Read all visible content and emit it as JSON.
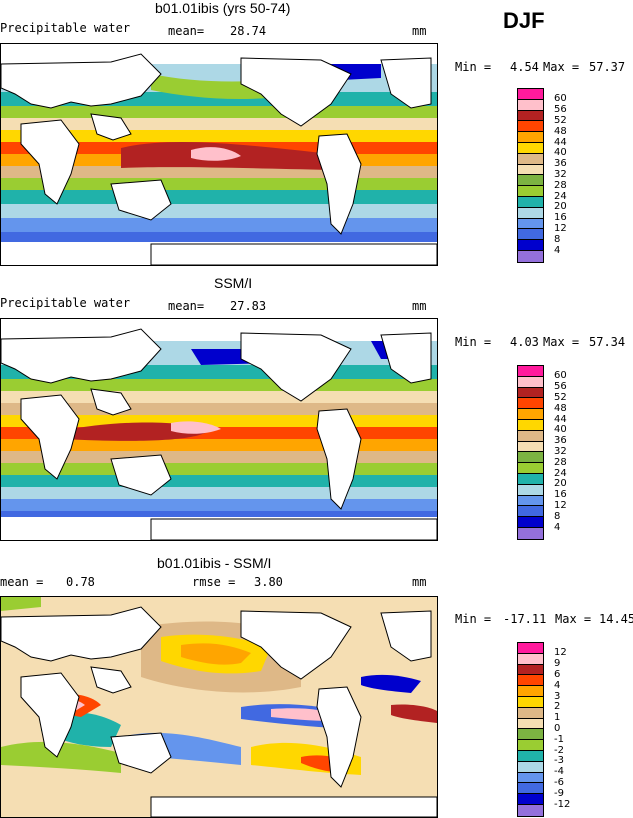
{
  "season": "DJF",
  "panels": [
    {
      "title": "b01.01ibis (yrs 50-74)",
      "field": "Precipitable water",
      "mean_label": "mean=",
      "mean_value": "28.74",
      "units": "mm",
      "min_label": "Min =",
      "min_value": "4.54",
      "max_label": "Max =",
      "max_value": "57.37",
      "levels": [
        "60",
        "56",
        "52",
        "48",
        "44",
        "40",
        "36",
        "32",
        "28",
        "24",
        "20",
        "16",
        "12",
        "8",
        "4"
      ],
      "colors": [
        "#ff1a9c",
        "#ffc0cb",
        "#b22222",
        "#ff4500",
        "#ffa500",
        "#ffd700",
        "#deb887",
        "#f5deb3",
        "#7cb342",
        "#9acd32",
        "#20b2aa",
        "#add8e6",
        "#6495ed",
        "#4169e1",
        "#0000cd",
        "#9370db"
      ]
    },
    {
      "title": "SSM/I",
      "field": "Precipitable water",
      "mean_label": "mean=",
      "mean_value": "27.83",
      "units": "mm",
      "min_label": "Min =",
      "min_value": "4.03",
      "max_label": "Max =",
      "max_value": "57.34",
      "levels": [
        "60",
        "56",
        "52",
        "48",
        "44",
        "40",
        "36",
        "32",
        "28",
        "24",
        "20",
        "16",
        "12",
        "8",
        "4"
      ],
      "colors": [
        "#ff1a9c",
        "#ffc0cb",
        "#b22222",
        "#ff4500",
        "#ffa500",
        "#ffd700",
        "#deb887",
        "#f5deb3",
        "#7cb342",
        "#9acd32",
        "#20b2aa",
        "#add8e6",
        "#6495ed",
        "#4169e1",
        "#0000cd",
        "#9370db"
      ]
    },
    {
      "title": "b01.01ibis - SSM/I",
      "mean_label": "mean =",
      "mean_value": "0.78",
      "rmse_label": "rmse =",
      "rmse_value": "3.80",
      "units": "mm",
      "min_label": "Min =",
      "min_value": "-17.11",
      "max_label": "Max =",
      "max_value": "14.45",
      "levels": [
        "12",
        "9",
        "6",
        "4",
        "3",
        "2",
        "1",
        "0",
        "-1",
        "-2",
        "-3",
        "-4",
        "-6",
        "-9",
        "-12"
      ],
      "colors": [
        "#ff1a9c",
        "#ffc0cb",
        "#b22222",
        "#ff4500",
        "#ffa500",
        "#ffd700",
        "#deb887",
        "#f5deb3",
        "#7cb342",
        "#9acd32",
        "#20b2aa",
        "#add8e6",
        "#6495ed",
        "#4169e1",
        "#0000cd",
        "#9370db"
      ]
    }
  ]
}
